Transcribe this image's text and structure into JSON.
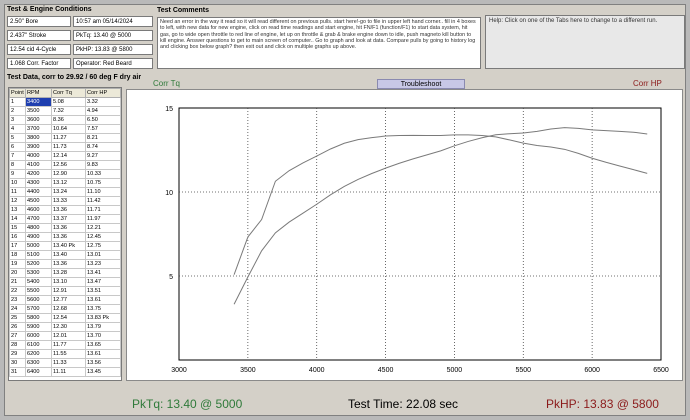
{
  "conditions": {
    "title": "Test & Engine Conditions",
    "left": [
      "2.50\" Bore",
      "2.437\" Stroke",
      "12.54 cid  4-Cycle",
      "1.068 Corr. Factor"
    ],
    "right": [
      "10:57 am  05/14/2024",
      "PkTq: 13.40 @ 5000",
      "PkHP: 13.83 @ 5800",
      "Operator: Red Beard"
    ]
  },
  "comments": {
    "title": "Test Comments",
    "text": "Need an error in the way it read so it will read different on previous pulls. start here!-go to file in upper left hand corner.. fill in 4 boxes to left, with new data for new engine, click on read time readings and start engine, hit FN/F1 (function/F1) to start data system, hit gas, go to wide open throttle to red line of engine, let up on throttle & grab & brake engine down to idle, push magneto kill button to kill engine. Answer questions to get to main screen of computer.. Go to graph and look at data. Compare pulls by going to  history log and clicking box below graph? then exit out and click on multiple graphs up above."
  },
  "help": {
    "text": "Help:  Click on one of the Tabs here to change to a different run."
  },
  "test_data": {
    "title": "Test Data, corr to 29.92 / 60 deg F dry air",
    "columns": [
      "Point",
      "RPM",
      "Corr Tq",
      "Corr HP"
    ],
    "rows": [
      [
        "1",
        "3400",
        "5.08",
        "3.32"
      ],
      [
        "2",
        "3500",
        "7.32",
        "4.94"
      ],
      [
        "3",
        "3600",
        "8.36",
        "6.50"
      ],
      [
        "4",
        "3700",
        "10.64",
        "7.57"
      ],
      [
        "5",
        "3800",
        "11.27",
        "8.21"
      ],
      [
        "6",
        "3900",
        "11.73",
        "8.74"
      ],
      [
        "7",
        "4000",
        "12.14",
        "9.27"
      ],
      [
        "8",
        "4100",
        "12.56",
        "9.83"
      ],
      [
        "9",
        "4200",
        "12.90",
        "10.33"
      ],
      [
        "10",
        "4300",
        "13.12",
        "10.75"
      ],
      [
        "11",
        "4400",
        "13.24",
        "11.10"
      ],
      [
        "12",
        "4500",
        "13.33",
        "11.42"
      ],
      [
        "13",
        "4600",
        "13.36",
        "11.71"
      ],
      [
        "14",
        "4700",
        "13.37",
        "11.97"
      ],
      [
        "15",
        "4800",
        "13.36",
        "12.21"
      ],
      [
        "16",
        "4900",
        "13.36",
        "12.45"
      ],
      [
        "17",
        "5000",
        "13.40 Pk",
        "12.75"
      ],
      [
        "18",
        "5100",
        "13.40",
        "13.01"
      ],
      [
        "19",
        "5200",
        "13.36",
        "13.23"
      ],
      [
        "20",
        "5300",
        "13.28",
        "13.41"
      ],
      [
        "21",
        "5400",
        "13.10",
        "13.47"
      ],
      [
        "22",
        "5500",
        "12.91",
        "13.51"
      ],
      [
        "23",
        "5600",
        "12.77",
        "13.61"
      ],
      [
        "24",
        "5700",
        "12.68",
        "13.75"
      ],
      [
        "25",
        "5800",
        "12.54",
        "13.83 Pk"
      ],
      [
        "26",
        "5900",
        "12.30",
        "13.79"
      ],
      [
        "27",
        "6000",
        "12.01",
        "13.70"
      ],
      [
        "28",
        "6100",
        "11.77",
        "13.65"
      ],
      [
        "29",
        "6200",
        "11.55",
        "13.61"
      ],
      [
        "30",
        "6300",
        "11.33",
        "13.56"
      ],
      [
        "31",
        "6400",
        "11.11",
        "13.45"
      ]
    ]
  },
  "tabs": {
    "left": "Corr Tq",
    "center": "Troubleshoot",
    "right": "Corr HP"
  },
  "chart_data": {
    "type": "line",
    "x": [
      3400,
      3500,
      3600,
      3700,
      3800,
      3900,
      4000,
      4100,
      4200,
      4300,
      4400,
      4500,
      4600,
      4700,
      4800,
      4900,
      5000,
      5100,
      5200,
      5300,
      5400,
      5500,
      5600,
      5700,
      5800,
      5900,
      6000,
      6100,
      6200,
      6300,
      6400
    ],
    "series": [
      {
        "values": [
          5.08,
          7.32,
          8.36,
          10.64,
          11.27,
          11.73,
          12.14,
          12.56,
          12.9,
          13.12,
          13.24,
          13.33,
          13.36,
          13.37,
          13.36,
          13.36,
          13.4,
          13.4,
          13.36,
          13.28,
          13.1,
          12.91,
          12.77,
          12.68,
          12.54,
          12.3,
          12.01,
          11.77,
          11.55,
          11.33,
          11.11
        ]
      },
      {
        "values": [
          3.32,
          4.94,
          6.5,
          7.57,
          8.21,
          8.74,
          9.27,
          9.83,
          10.33,
          10.75,
          11.1,
          11.42,
          11.71,
          11.97,
          12.21,
          12.45,
          12.75,
          13.01,
          13.23,
          13.41,
          13.47,
          13.51,
          13.61,
          13.75,
          13.83,
          13.79,
          13.7,
          13.65,
          13.61,
          13.56,
          13.45
        ]
      }
    ],
    "xlim": [
      3000,
      6500
    ],
    "ylim": [
      0,
      15
    ],
    "xticks": [
      "3000",
      "3500",
      "4000",
      "4500",
      "5000",
      "5500",
      "6000",
      "6500"
    ],
    "yticks": [
      "5",
      "10",
      "15"
    ],
    "grid": true,
    "line_color": "#7a7a7a"
  },
  "footer": {
    "pk_tq": "PkTq: 13.40 @  5000",
    "test_time": "Test Time: 22.08 sec",
    "pk_hp": "PkHP: 13.83 @  5800",
    "tq_color": "#2f7a3a",
    "hp_color": "#8b1a1a"
  }
}
